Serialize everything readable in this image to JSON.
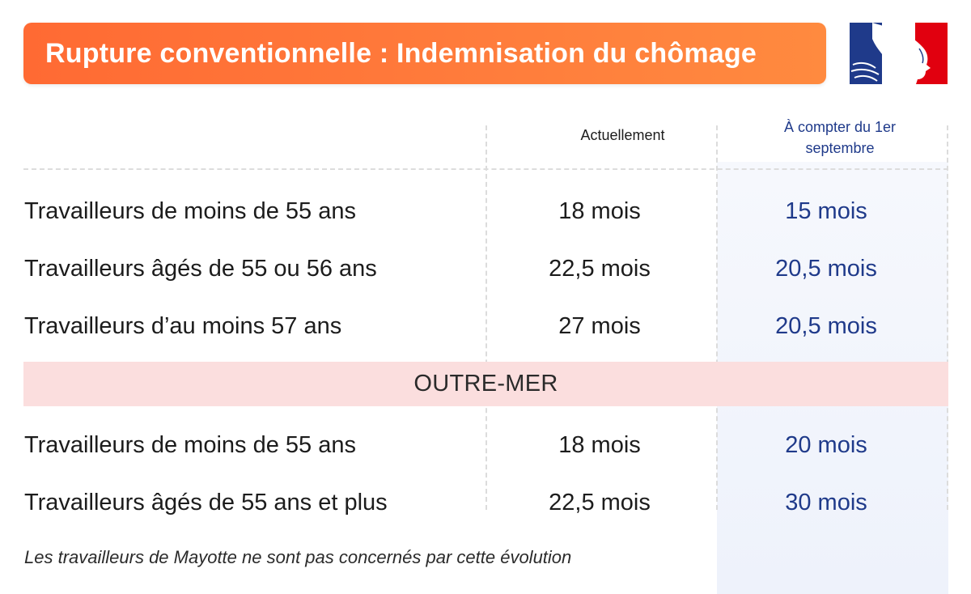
{
  "title": "Rupture conventionnelle : Indemnisation du chômage",
  "logo": {
    "name": "republique-francaise-logo",
    "blue": "#1f3a8a",
    "red": "#e1000f"
  },
  "colors": {
    "banner": "#ff7539",
    "new_values": "#1f3a8a",
    "outremer_band": "#fbdede"
  },
  "columns": {
    "current": "Actuellement",
    "next": "À compter du 1er septembre"
  },
  "rows": [
    {
      "label": "Travailleurs de moins de 55 ans",
      "current": "18 mois",
      "next": "15 mois"
    },
    {
      "label": "Travailleurs âgés de 55 ou 56 ans",
      "current": "22,5 mois",
      "next": "20,5 mois"
    },
    {
      "label": "Travailleurs d’au moins 57 ans",
      "current": "27 mois",
      "next": "20,5 mois"
    }
  ],
  "outremer": {
    "heading": "OUTRE-MER",
    "rows": [
      {
        "label": "Travailleurs de moins de 55 ans",
        "current": "18 mois",
        "next": "20 mois"
      },
      {
        "label": "Travailleurs âgés de 55 ans et plus",
        "current": "22,5 mois",
        "next": "30 mois"
      }
    ]
  },
  "footnote": "Les travailleurs de Mayotte ne sont pas concernés par cette évolution"
}
